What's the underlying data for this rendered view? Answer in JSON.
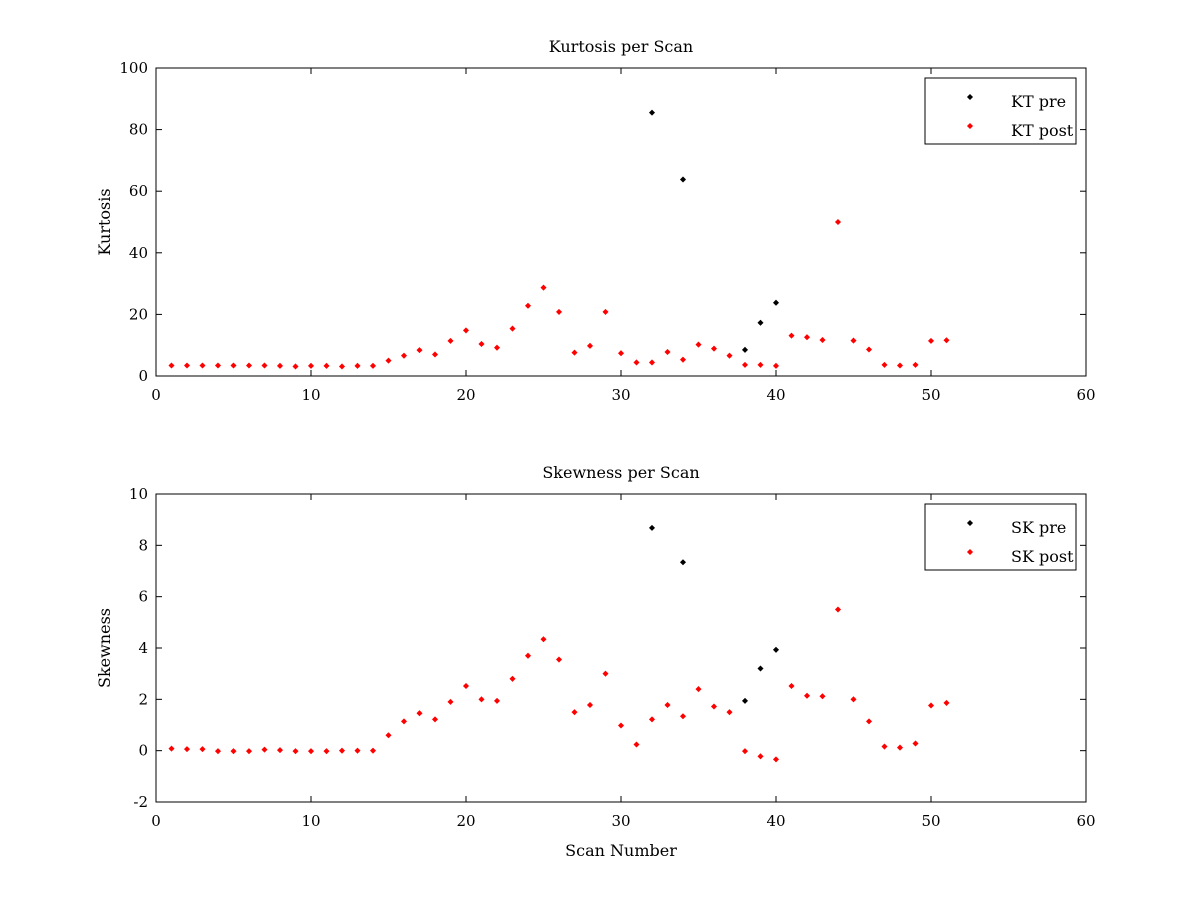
{
  "chart_data": [
    {
      "type": "scatter",
      "title": "Kurtosis per Scan",
      "xlabel": "",
      "ylabel": "Kurtosis",
      "xlim": [
        0,
        60
      ],
      "ylim": [
        0,
        100
      ],
      "xticks": [
        0,
        10,
        20,
        30,
        40,
        50,
        60
      ],
      "yticks": [
        0,
        20,
        40,
        60,
        80,
        100
      ],
      "grid": false,
      "legend_position": "top-right",
      "series": [
        {
          "name": "KT pre",
          "color": "#000000",
          "points": [
            [
              32,
              85.5
            ],
            [
              34,
              63.8
            ],
            [
              38,
              8.5
            ],
            [
              39,
              17.3
            ],
            [
              40,
              23.8
            ]
          ]
        },
        {
          "name": "KT post",
          "color": "#ff0000",
          "points": [
            [
              1,
              3.4
            ],
            [
              2,
              3.4
            ],
            [
              3,
              3.4
            ],
            [
              4,
              3.4
            ],
            [
              5,
              3.4
            ],
            [
              6,
              3.4
            ],
            [
              7,
              3.4
            ],
            [
              8,
              3.3
            ],
            [
              9,
              3.1
            ],
            [
              10,
              3.3
            ],
            [
              11,
              3.3
            ],
            [
              12,
              3.1
            ],
            [
              13,
              3.3
            ],
            [
              14,
              3.3
            ],
            [
              15,
              5.0
            ],
            [
              16,
              6.6
            ],
            [
              17,
              8.4
            ],
            [
              18,
              7.0
            ],
            [
              19,
              11.4
            ],
            [
              20,
              14.8
            ],
            [
              21,
              10.4
            ],
            [
              22,
              9.2
            ],
            [
              23,
              15.4
            ],
            [
              24,
              22.8
            ],
            [
              25,
              28.7
            ],
            [
              26,
              20.8
            ],
            [
              27,
              7.6
            ],
            [
              28,
              9.8
            ],
            [
              29,
              20.8
            ],
            [
              30,
              7.4
            ],
            [
              31,
              4.4
            ],
            [
              32,
              4.4
            ],
            [
              33,
              7.8
            ],
            [
              34,
              5.3
            ],
            [
              35,
              10.2
            ],
            [
              36,
              8.9
            ],
            [
              37,
              6.6
            ],
            [
              38,
              3.6
            ],
            [
              39,
              3.6
            ],
            [
              40,
              3.3
            ],
            [
              41,
              13.1
            ],
            [
              42,
              12.6
            ],
            [
              43,
              11.7
            ],
            [
              44,
              50.0
            ],
            [
              45,
              11.5
            ],
            [
              46,
              8.6
            ],
            [
              47,
              3.6
            ],
            [
              48,
              3.4
            ],
            [
              49,
              3.6
            ],
            [
              50,
              11.4
            ],
            [
              51,
              11.6
            ]
          ]
        }
      ]
    },
    {
      "type": "scatter",
      "title": "Skewness per Scan",
      "xlabel": "Scan Number",
      "ylabel": "Skewness",
      "xlim": [
        0,
        60
      ],
      "ylim": [
        -2,
        10
      ],
      "xticks": [
        0,
        10,
        20,
        30,
        40,
        50,
        60
      ],
      "yticks": [
        -2,
        0,
        2,
        4,
        6,
        8,
        10
      ],
      "grid": false,
      "legend_position": "top-right",
      "series": [
        {
          "name": "SK pre",
          "color": "#000000",
          "points": [
            [
              32,
              8.68
            ],
            [
              34,
              7.34
            ],
            [
              38,
              1.94
            ],
            [
              39,
              3.2
            ],
            [
              40,
              3.93
            ]
          ]
        },
        {
          "name": "SK post",
          "color": "#ff0000",
          "points": [
            [
              1,
              0.08
            ],
            [
              2,
              0.06
            ],
            [
              3,
              0.06
            ],
            [
              4,
              -0.02
            ],
            [
              5,
              -0.02
            ],
            [
              6,
              -0.02
            ],
            [
              7,
              0.04
            ],
            [
              8,
              0.02
            ],
            [
              9,
              -0.02
            ],
            [
              10,
              -0.02
            ],
            [
              11,
              -0.02
            ],
            [
              12,
              0.0
            ],
            [
              13,
              0.0
            ],
            [
              14,
              0.0
            ],
            [
              15,
              0.6
            ],
            [
              16,
              1.14
            ],
            [
              17,
              1.46
            ],
            [
              18,
              1.22
            ],
            [
              19,
              1.9
            ],
            [
              20,
              2.52
            ],
            [
              21,
              2.0
            ],
            [
              22,
              1.94
            ],
            [
              23,
              2.8
            ],
            [
              24,
              3.7
            ],
            [
              25,
              4.34
            ],
            [
              26,
              3.55
            ],
            [
              27,
              1.5
            ],
            [
              28,
              1.78
            ],
            [
              29,
              3.0
            ],
            [
              30,
              0.98
            ],
            [
              31,
              0.24
            ],
            [
              32,
              1.22
            ],
            [
              33,
              1.78
            ],
            [
              34,
              1.34
            ],
            [
              35,
              2.4
            ],
            [
              36,
              1.72
            ],
            [
              37,
              1.5
            ],
            [
              38,
              -0.02
            ],
            [
              39,
              -0.22
            ],
            [
              40,
              -0.34
            ],
            [
              41,
              2.52
            ],
            [
              42,
              2.14
            ],
            [
              43,
              2.12
            ],
            [
              44,
              5.5
            ],
            [
              45,
              2.0
            ],
            [
              46,
              1.14
            ],
            [
              47,
              0.16
            ],
            [
              48,
              0.12
            ],
            [
              49,
              0.28
            ],
            [
              50,
              1.76
            ],
            [
              51,
              1.86
            ]
          ]
        }
      ]
    }
  ]
}
